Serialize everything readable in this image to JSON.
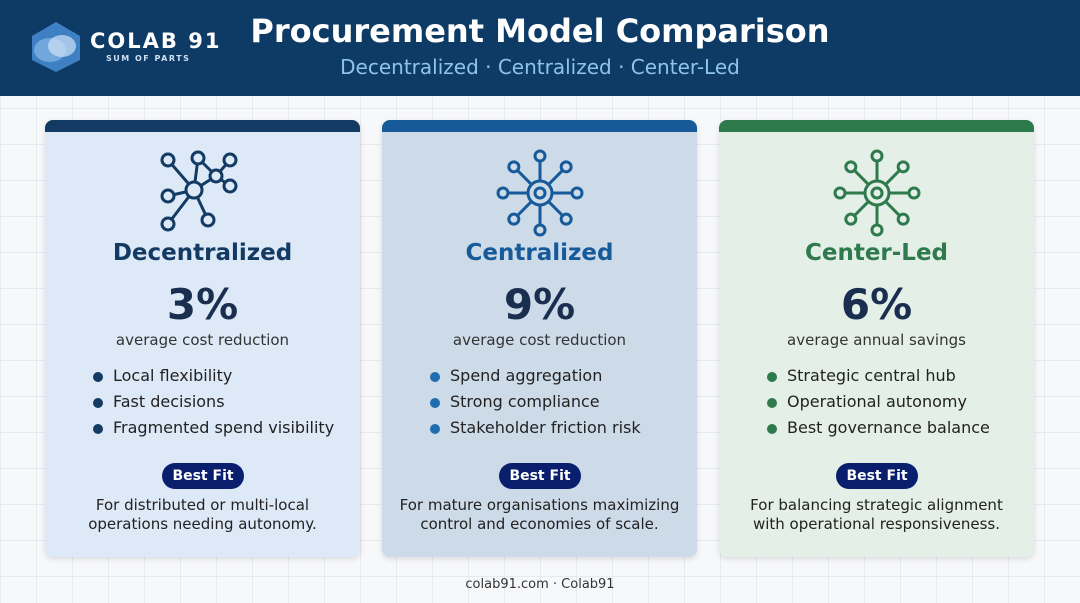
{
  "header": {
    "logo_name": "COLAB 91",
    "logo_tagline": "SUM OF PARTS",
    "title": "Procurement Model Comparison",
    "subtitle": "Decentralized · Centralized · Center-Led"
  },
  "cards": [
    {
      "name": "Decentralized",
      "stat": "3%",
      "stat_caption": "average cost reduction",
      "bullets": [
        "Local flexibility",
        "Fast decisions",
        "Fragmented spend visibility"
      ],
      "badge": "Best Fit",
      "description": [
        "For distributed or multi-local",
        "operations needing autonomy."
      ]
    },
    {
      "name": "Centralized",
      "stat": "9%",
      "stat_caption": "average cost reduction",
      "bullets": [
        "Spend aggregation",
        "Strong compliance",
        "Stakeholder friction risk"
      ],
      "badge": "Best Fit",
      "description": [
        "For mature organisations maximizing",
        "control and economies of scale."
      ]
    },
    {
      "name": "Center-Led",
      "stat": "6%",
      "stat_caption": "average annual savings",
      "bullets": [
        "Strategic central hub",
        "Operational autonomy",
        "Best governance balance"
      ],
      "badge": "Best Fit",
      "description": [
        "For balancing strategic alignment",
        "with operational responsiveness."
      ]
    }
  ],
  "footer": "colab91.com · Colab91"
}
